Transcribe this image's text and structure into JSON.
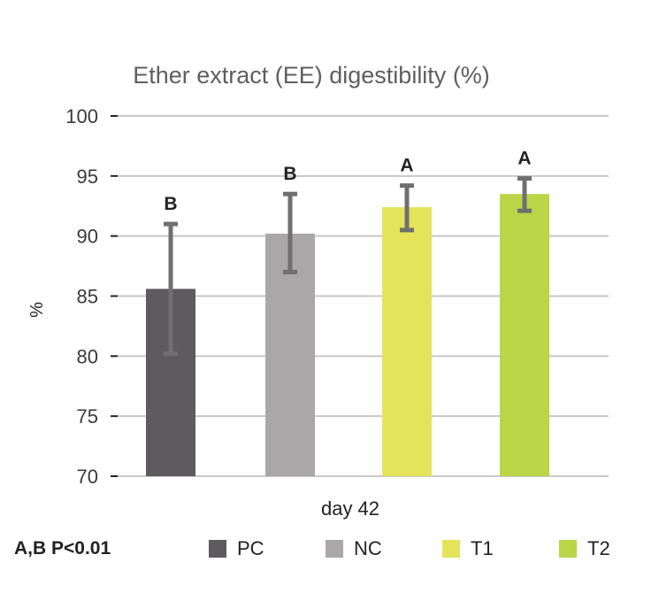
{
  "chart_data": {
    "type": "bar",
    "title": "Ether extract (EE) digestibility (%)",
    "xlabel": "day 42",
    "ylabel": "%",
    "ylim": [
      70,
      100
    ],
    "yticks": [
      70,
      75,
      80,
      85,
      90,
      95,
      100
    ],
    "categories": [
      "day 42"
    ],
    "series": [
      {
        "name": "PC",
        "values": [
          85.6
        ],
        "error_low": [
          80.2
        ],
        "error_high": [
          91.0
        ],
        "significance": "B",
        "color": "#5d5b5e"
      },
      {
        "name": "NC",
        "values": [
          90.2
        ],
        "error_low": [
          87.0
        ],
        "error_high": [
          93.5
        ],
        "significance": "B",
        "color": "#a9a7a8"
      },
      {
        "name": "T1",
        "values": [
          92.4
        ],
        "error_low": [
          90.5
        ],
        "error_high": [
          94.2
        ],
        "significance": "A",
        "color": "#e3e45a"
      },
      {
        "name": "T2",
        "values": [
          93.5
        ],
        "error_low": [
          92.1
        ],
        "error_high": [
          94.8
        ],
        "significance": "A",
        "color": "#bcd447"
      }
    ],
    "grid": true,
    "legend": "bottom"
  },
  "footnote": "A,B P<0.01",
  "colors": {
    "grid": "#c8c8c8",
    "axis_tick": "#222222",
    "error_bar": "#6f6f6f"
  }
}
